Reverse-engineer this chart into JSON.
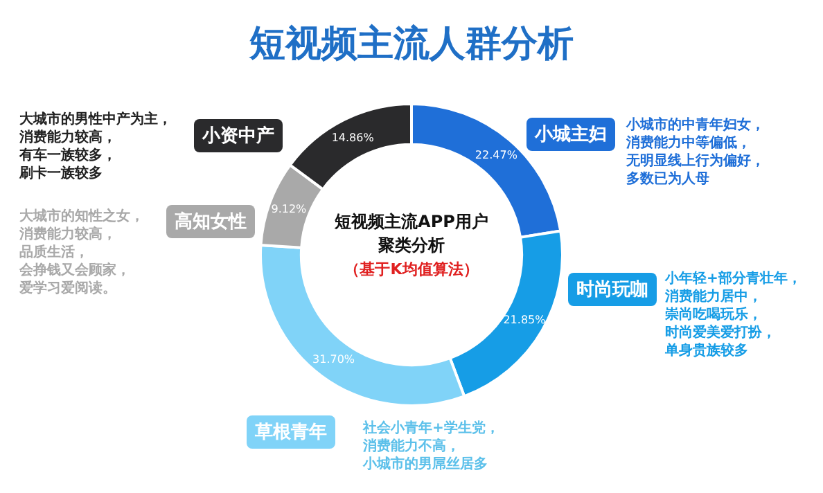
{
  "chart_data": {
    "type": "donut",
    "title": "短视频主流人群分析",
    "subtitle": "短视频主流APP用户聚类分析",
    "categories": [
      "小城主妇",
      "时尚玩咖",
      "草根青年",
      "高知女性",
      "小资中产"
    ],
    "values": [
      22.47,
      21.85,
      31.7,
      9.12,
      14.86
    ],
    "value_labels": [
      "22.47%",
      "21.85%",
      "31.70%",
      "9.12%",
      "14.86%"
    ],
    "colors": [
      "#1f6fd8",
      "#169de6",
      "#80d3f8",
      "#a9a9a9",
      "#2a2a2c"
    ],
    "annotations": [
      "（基于K均值算法）",
      "小城市的中青年妇女，消费能力中等偏低，无明显线上行为偏好，多数已为人母",
      "小年轻+部分青壮年，消费能力居中，崇尚吃喝玩乐，时尚爱美爱打扮，单身贵族较多",
      "社会小青年+学生党，消费能力不高，小城市的男屌丝居多",
      "大城市的知性之女，消费能力较高，品质生活，会挣钱又会顾家，爱学习爱阅读。",
      "大城市的男性中产为主，消费能力较高，有车一族较多，刷卡一族较多"
    ]
  }
}
